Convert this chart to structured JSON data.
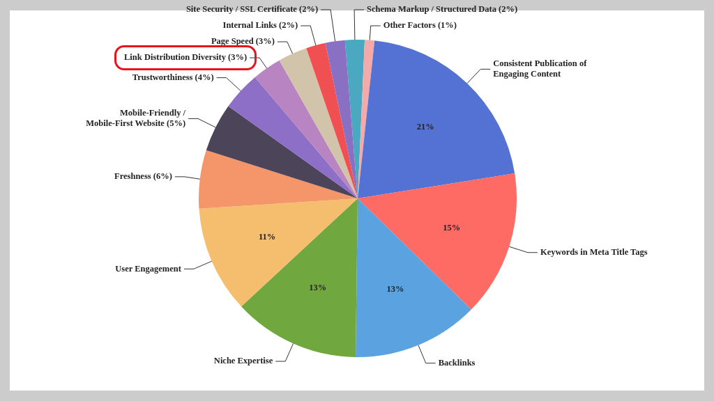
{
  "chart_data": {
    "type": "pie",
    "categories": [
      "Schema Markup / Structured Data (2%)",
      "Other Factors (1%)",
      "Consistent Publication of\nEngaging Content",
      "Keywords in Meta Title Tags",
      "Backlinks",
      "Niche Expertise",
      "User Engagement",
      "Freshness (6%)",
      "Mobile-Friendly /\nMobile-First Website (5%)",
      "Trustworthiness (4%)",
      "Link Distribution Diversity (3%)",
      "Page Speed (3%)",
      "Internal Links (2%)",
      "Site Security / SSL Certificate (2%)"
    ],
    "values": [
      2,
      1,
      21,
      15,
      13,
      13,
      11,
      6,
      5,
      4,
      3,
      3,
      2,
      2
    ],
    "colors": [
      "#4aa8c0",
      "#f4aaa8",
      "#5472d3",
      "#fd6b64",
      "#5aa2e0",
      "#70a83f",
      "#f5bd6e",
      "#f4956a",
      "#4c4559",
      "#8d6fc8",
      "#b984c2",
      "#d1c4ab",
      "#f05052",
      "#8a70c2"
    ],
    "value_labels": [
      null,
      null,
      "21%",
      "15%",
      "13%",
      "13%",
      "11%",
      null,
      null,
      null,
      null,
      null,
      null,
      null
    ],
    "legend": false
  }
}
